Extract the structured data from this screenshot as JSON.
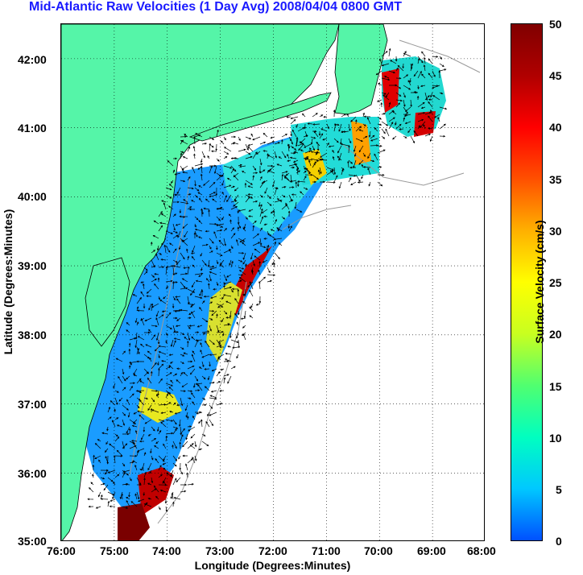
{
  "title": "Mid-Atlantic Raw Velocities (1 Day Avg) 2008/04/04 0800 GMT",
  "x_axis": {
    "label": "Longitude (Degrees:Minutes)",
    "ticks": [
      "76:00",
      "75:00",
      "74:00",
      "73:00",
      "72:00",
      "71:00",
      "70:00",
      "69:00",
      "68:00"
    ]
  },
  "y_axis": {
    "label": "Latitude (Degrees:Minutes)",
    "ticks": [
      "42:00",
      "41:00",
      "40:00",
      "39:00",
      "38:00",
      "37:00",
      "36:00",
      "35:00"
    ]
  },
  "colorbar": {
    "label": "Surface Velocity (cm/s)",
    "ticks": [
      "50",
      "45",
      "40",
      "35",
      "30",
      "25",
      "20",
      "15",
      "10",
      "5",
      "0"
    ],
    "range": [
      0,
      50
    ],
    "colors": [
      "#0050ff",
      "#00c8ff",
      "#00ffc0",
      "#50ff70",
      "#c8ff20",
      "#ffff00",
      "#ffb000",
      "#ff5000",
      "#ff0000",
      "#b00000",
      "#800000"
    ]
  },
  "map": {
    "lon_range": [
      -76,
      -68
    ],
    "lat_range": [
      35,
      42.5
    ],
    "land_color": "#55f5a8",
    "grid": true,
    "grid_style": "dotted"
  }
}
